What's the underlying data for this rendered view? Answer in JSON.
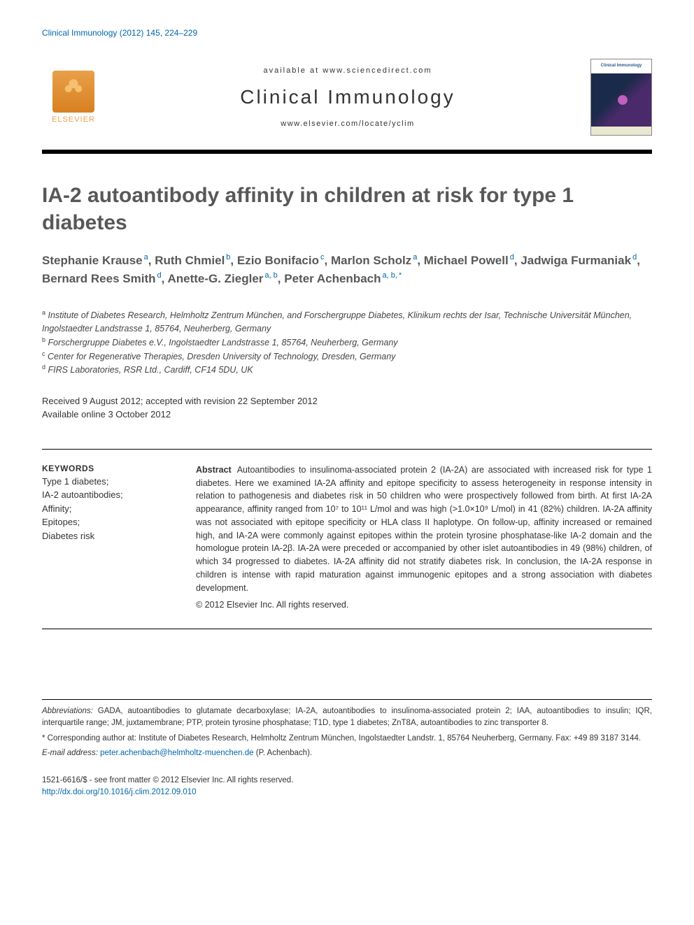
{
  "citation": "Clinical Immunology (2012) 145, 224–229",
  "header": {
    "available_at": "available at www.sciencedirect.com",
    "journal_name": "Clinical Immunology",
    "journal_url": "www.elsevier.com/locate/yclim",
    "elsevier_label": "ELSEVIER",
    "cover_title": "Clinical Immunology"
  },
  "title": "IA-2 autoantibody affinity in children at risk for type 1 diabetes",
  "authors": [
    {
      "name": "Stephanie Krause",
      "sup": "a"
    },
    {
      "name": "Ruth Chmiel",
      "sup": "b"
    },
    {
      "name": "Ezio Bonifacio",
      "sup": "c"
    },
    {
      "name": "Marlon Scholz",
      "sup": "a"
    },
    {
      "name": "Michael Powell",
      "sup": "d"
    },
    {
      "name": "Jadwiga Furmaniak",
      "sup": "d"
    },
    {
      "name": "Bernard Rees Smith",
      "sup": "d"
    },
    {
      "name": "Anette-G. Ziegler",
      "sup": "a, b"
    },
    {
      "name": "Peter Achenbach",
      "sup": "a, b,",
      "corr": true
    }
  ],
  "affiliations": [
    {
      "key": "a",
      "text": "Institute of Diabetes Research, Helmholtz Zentrum München, and Forschergruppe Diabetes, Klinikum rechts der Isar, Technische Universität München, Ingolstaedter Landstrasse 1, 85764, Neuherberg, Germany"
    },
    {
      "key": "b",
      "text": "Forschergruppe Diabetes e.V., Ingolstaedter Landstrasse 1, 85764, Neuherberg, Germany"
    },
    {
      "key": "c",
      "text": "Center for Regenerative Therapies, Dresden University of Technology, Dresden, Germany"
    },
    {
      "key": "d",
      "text": "FIRS Laboratories, RSR Ltd., Cardiff, CF14 5DU, UK"
    }
  ],
  "dates": {
    "received": "Received 9 August 2012; accepted with revision 22 September 2012",
    "online": "Available online 3 October 2012"
  },
  "keywords": {
    "heading": "KEYWORDS",
    "items": "Type 1 diabetes;\nIA-2 autoantibodies;\nAffinity;\nEpitopes;\nDiabetes risk"
  },
  "abstract": {
    "label": "Abstract",
    "text": "Autoantibodies to insulinoma-associated protein 2 (IA-2A) are associated with increased risk for type 1 diabetes. Here we examined IA-2A affinity and epitope specificity to assess heterogeneity in response intensity in relation to pathogenesis and diabetes risk in 50 children who were prospectively followed from birth. At first IA-2A appearance, affinity ranged from 10⁷ to 10¹¹ L/mol and was high (>1.0×10⁹ L/mol) in 41 (82%) children. IA-2A affinity was not associated with epitope specificity or HLA class II haplotype. On follow-up, affinity increased or remained high, and IA-2A were commonly against epitopes within the protein tyrosine phosphatase-like IA-2 domain and the homologue protein IA-2β. IA-2A were preceded or accompanied by other islet autoantibodies in 49 (98%) children, of which 34 progressed to diabetes. IA-2A affinity did not stratify diabetes risk. In conclusion, the IA-2A response in children is intense with rapid maturation against immunogenic epitopes and a strong association with diabetes development.",
    "copyright": "© 2012 Elsevier Inc. All rights reserved."
  },
  "footnotes": {
    "abbrev_label": "Abbreviations:",
    "abbrev_text": " GADA, autoantibodies to glutamate decarboxylase; IA-2A, autoantibodies to insulinoma-associated protein 2; IAA, autoantibodies to insulin; IQR, interquartile range; JM, juxtamembrane; PTP, protein tyrosine phosphatase; T1D, type 1 diabetes; ZnT8A, autoantibodies to zinc transporter 8.",
    "corr_text": "* Corresponding author at: Institute of Diabetes Research, Helmholtz Zentrum München, Ingolstaedter Landstr. 1, 85764 Neuherberg, Germany. Fax: +49 89 3187 3144.",
    "email_label": "E-mail address:",
    "email": "peter.achenbach@helmholtz-muenchen.de",
    "email_name": " (P. Achenbach)."
  },
  "bottom": {
    "front_matter": "1521-6616/$ - see front matter © 2012 Elsevier Inc. All rights reserved.",
    "doi": "http://dx.doi.org/10.1016/j.clim.2012.09.010"
  },
  "colors": {
    "link": "#0066aa",
    "title_grey": "#585858",
    "elsevier_orange": "#e8a04a",
    "text": "#333333"
  },
  "typography": {
    "title_fontsize": 30,
    "authors_fontsize": 17,
    "body_fontsize": 12.5,
    "footnote_fontsize": 11.5
  }
}
